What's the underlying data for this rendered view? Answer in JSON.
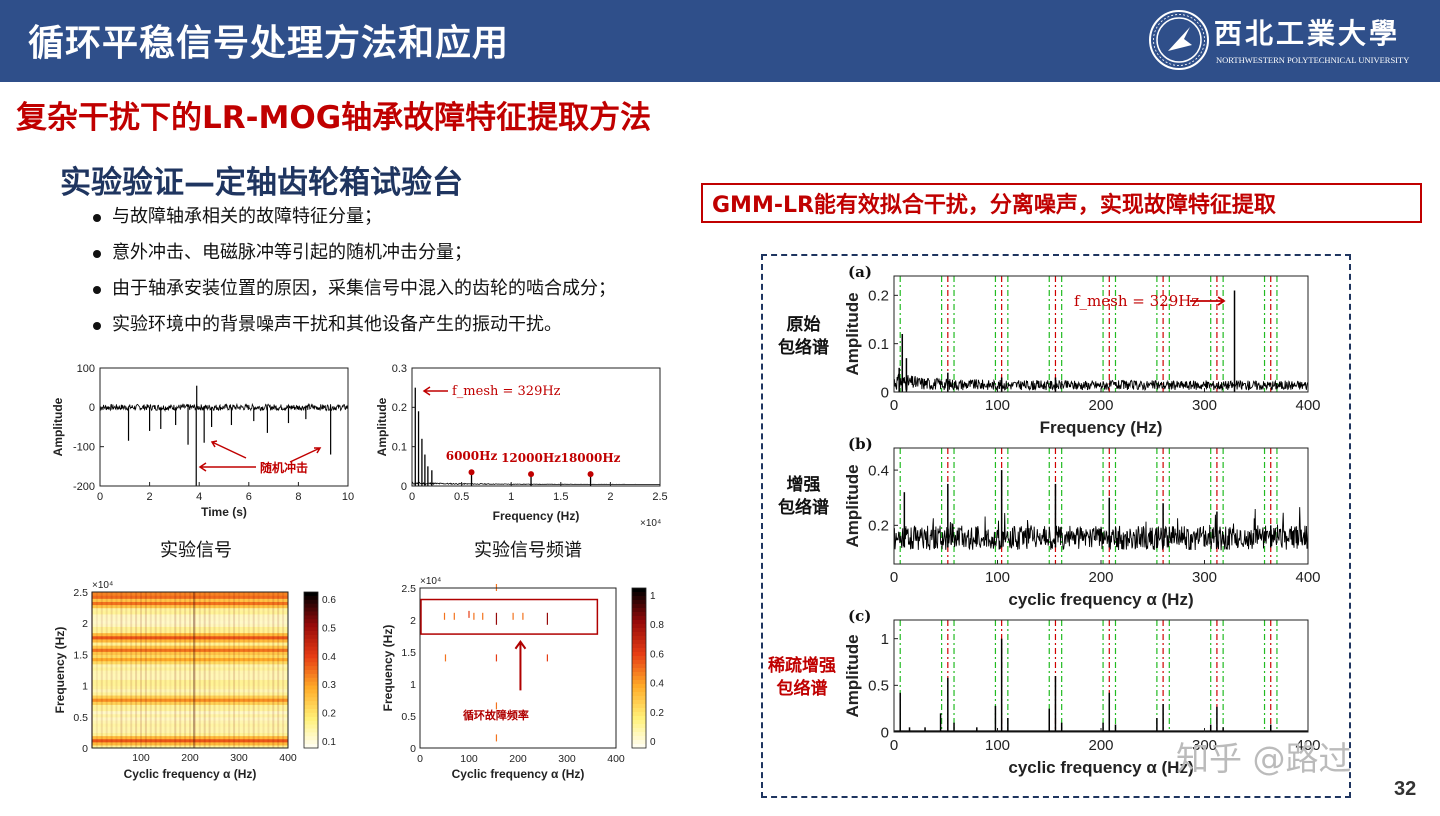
{
  "header": {
    "title": "循环平稳信号处理方法和应用",
    "university_name": "西北工業大學",
    "university_en": "NORTHWESTERN POLYTECHNICAL UNIVERSITY"
  },
  "subtitle": "复杂干扰下的LR-MOG轴承故障特征提取方法",
  "section_title": "实验验证—定轴齿轮箱试验台",
  "bullets": [
    "与故障轴承相关的故障特征分量；",
    "意外冲击、电磁脉冲等引起的随机冲击分量；",
    "由于轴承安装位置的原因，采集信号中混入的齿轮的啮合成分；",
    "实验环境中的背景噪声干扰和其他设备产生的振动干扰。"
  ],
  "callout": "GMM-LR能有效拟合干扰，分离噪声，实现故障特征提取",
  "page_number": "32",
  "watermark": "知乎 @路过",
  "captions": {
    "signal": "实验信号",
    "spectrum": "实验信号频谱"
  },
  "colors": {
    "header_bg": "#2f4f8a",
    "accent_red": "#c00000",
    "navy": "#1f3560",
    "red_guide": "#d00000",
    "green_guide": "#22bb22"
  },
  "chart_data": [
    {
      "id": "time-signal",
      "type": "line",
      "xlabel": "Time (s)",
      "ylabel": "Amplitude",
      "xlim": [
        0,
        10
      ],
      "ylim": [
        -200,
        100
      ],
      "xticks": [
        "0",
        "2",
        "4",
        "6",
        "8",
        "10"
      ],
      "yticks": [
        "100",
        "0",
        "-100",
        "-200"
      ],
      "annotation": "随机冲击",
      "impulses": [
        {
          "x": 1.15,
          "y": -85
        },
        {
          "x": 2.0,
          "y": -60
        },
        {
          "x": 2.45,
          "y": -55
        },
        {
          "x": 3.05,
          "y": -45
        },
        {
          "x": 3.55,
          "y": -95
        },
        {
          "x": 3.88,
          "y": -200
        },
        {
          "x": 3.9,
          "y": 55
        },
        {
          "x": 4.2,
          "y": -90
        },
        {
          "x": 4.5,
          "y": -50
        },
        {
          "x": 5.3,
          "y": -45
        },
        {
          "x": 6.2,
          "y": -35
        },
        {
          "x": 6.75,
          "y": -65
        },
        {
          "x": 7.6,
          "y": -40
        },
        {
          "x": 8.3,
          "y": -30
        },
        {
          "x": 9.3,
          "y": -120
        }
      ]
    },
    {
      "id": "signal-spectrum",
      "type": "line",
      "xlabel": "Frequency (Hz)",
      "ylabel": "Amplitude",
      "x_multiplier": "×10⁴",
      "xlim": [
        0,
        2.5
      ],
      "ylim": [
        0,
        0.3
      ],
      "xticks": [
        "0",
        "0.5",
        "1",
        "1.5",
        "2",
        "2.5"
      ],
      "yticks": [
        "0.3",
        "0.2",
        "0.1",
        "0"
      ],
      "peaks": [
        {
          "x": 0.033,
          "y": 0.25
        },
        {
          "x": 0.066,
          "y": 0.19
        },
        {
          "x": 0.1,
          "y": 0.12
        },
        {
          "x": 0.13,
          "y": 0.08
        },
        {
          "x": 0.16,
          "y": 0.05
        },
        {
          "x": 0.2,
          "y": 0.04
        },
        {
          "x": 0.6,
          "y": 0.03
        },
        {
          "x": 1.2,
          "y": 0.025
        },
        {
          "x": 1.8,
          "y": 0.025
        }
      ],
      "labels": [
        {
          "text": "f_mesh = 329Hz",
          "x": 0.033,
          "y": 0.25
        },
        {
          "text": "6000Hz",
          "x": 0.6,
          "y": 0.03
        },
        {
          "text": "12000Hz",
          "x": 1.2,
          "y": 0.025
        },
        {
          "text": "18000Hz",
          "x": 1.8,
          "y": 0.025
        }
      ]
    },
    {
      "id": "cyclic-heatmap-raw",
      "type": "heatmap",
      "xlabel": "Cyclic frequency α (Hz)",
      "ylabel": "Frequency (Hz)",
      "y_multiplier": "×10⁴",
      "xlim": [
        0,
        400
      ],
      "ylim": [
        0,
        2.5
      ],
      "xticks": [
        "100",
        "200",
        "300",
        "400"
      ],
      "yticks": [
        "2.5",
        "2",
        "1.5",
        "1",
        "0.5",
        "0"
      ],
      "colorbar_ticks": [
        "0.6",
        "0.5",
        "0.4",
        "0.3",
        "0.2",
        "0.1"
      ],
      "bands": [
        {
          "y": 2.42,
          "level": 0.6
        },
        {
          "y": 2.3,
          "level": 0.5
        },
        {
          "y": 1.75,
          "level": 0.55
        },
        {
          "y": 1.55,
          "level": 0.5
        },
        {
          "y": 1.4,
          "level": 0.4
        },
        {
          "y": 0.75,
          "level": 0.45
        },
        {
          "y": 0.1,
          "level": 0.55
        }
      ]
    },
    {
      "id": "cyclic-heatmap-sparse",
      "type": "heatmap",
      "xlabel": "Cyclic frequency α (Hz)",
      "ylabel": "Frequency (Hz)",
      "y_multiplier": "×10⁴",
      "xlim": [
        0,
        400
      ],
      "ylim": [
        0,
        2.5
      ],
      "xticks": [
        "0",
        "100",
        "200",
        "300",
        "400"
      ],
      "yticks": [
        "2.5",
        "2",
        "1.5",
        "1",
        "0.5",
        "0"
      ],
      "colorbar_ticks": [
        "1",
        "0.8",
        "0.6",
        "0.4",
        "0.2",
        "0"
      ],
      "annotation": "循环故障频率",
      "marks": [
        {
          "x": 50,
          "y": 2.05,
          "level": 0.3
        },
        {
          "x": 70,
          "y": 2.05,
          "level": 0.3
        },
        {
          "x": 100,
          "y": 2.08,
          "level": 0.4
        },
        {
          "x": 110,
          "y": 2.05,
          "level": 0.3
        },
        {
          "x": 128,
          "y": 2.05,
          "level": 0.3
        },
        {
          "x": 156,
          "y": 2.05,
          "level": 0.6
        },
        {
          "x": 190,
          "y": 2.05,
          "level": 0.3
        },
        {
          "x": 210,
          "y": 2.05,
          "level": 0.3
        },
        {
          "x": 260,
          "y": 2.05,
          "level": 0.6
        },
        {
          "x": 156,
          "y": 2.5,
          "level": 0.3
        },
        {
          "x": 52,
          "y": 1.4,
          "level": 0.3
        },
        {
          "x": 156,
          "y": 1.4,
          "level": 0.4
        },
        {
          "x": 260,
          "y": 1.4,
          "level": 0.4
        },
        {
          "x": 156,
          "y": 0.65,
          "level": 0.3
        },
        {
          "x": 156,
          "y": 0.15,
          "level": 0.3
        }
      ]
    },
    {
      "id": "envelope-original",
      "type": "line",
      "panel_letter": "(a)",
      "row_label": [
        "原始",
        "包络谱"
      ],
      "xlabel": "Frequency (Hz)",
      "ylabel": "Amplitude",
      "xlim": [
        0,
        400
      ],
      "ylim": [
        0,
        0.24
      ],
      "xticks": [
        "0",
        "100",
        "200",
        "300",
        "400"
      ],
      "yticks": [
        "0.2",
        "0.1",
        "0"
      ],
      "annotation": "f_mesh = 329Hz",
      "peaks": [
        {
          "x": 5,
          "y": 0.05
        },
        {
          "x": 8,
          "y": 0.12
        },
        {
          "x": 12,
          "y": 0.07
        },
        {
          "x": 52,
          "y": 0.04
        },
        {
          "x": 104,
          "y": 0.03
        },
        {
          "x": 156,
          "y": 0.03
        },
        {
          "x": 329,
          "y": 0.21
        }
      ],
      "red_guides": [
        52,
        104,
        156,
        208,
        260,
        312,
        364
      ],
      "green_guides": [
        6,
        46,
        58,
        98,
        110,
        150,
        162,
        202,
        214,
        254,
        266,
        306,
        318,
        358,
        370
      ]
    },
    {
      "id": "envelope-enhanced",
      "type": "line",
      "panel_letter": "(b)",
      "row_label": [
        "增强",
        "包络谱"
      ],
      "xlabel": "cyclic frequency α (Hz)",
      "ylabel": "Amplitude",
      "xlim": [
        0,
        400
      ],
      "ylim": [
        0.06,
        0.48
      ],
      "xticks": [
        "0",
        "100",
        "200",
        "300",
        "400"
      ],
      "yticks": [
        "0.4",
        "0.2"
      ],
      "peaks": [
        {
          "x": 10,
          "y": 0.32
        },
        {
          "x": 52,
          "y": 0.35
        },
        {
          "x": 104,
          "y": 0.4
        },
        {
          "x": 156,
          "y": 0.35
        },
        {
          "x": 208,
          "y": 0.3
        },
        {
          "x": 260,
          "y": 0.28
        },
        {
          "x": 312,
          "y": 0.25
        },
        {
          "x": 364,
          "y": 0.2
        }
      ],
      "red_guides": [
        52,
        104,
        156,
        208,
        260,
        312,
        364
      ],
      "green_guides": [
        6,
        46,
        58,
        98,
        110,
        150,
        162,
        202,
        214,
        254,
        266,
        306,
        318,
        358,
        370
      ]
    },
    {
      "id": "envelope-sparse",
      "type": "line",
      "panel_letter": "(c)",
      "row_label": [
        "稀疏增强",
        "包络谱"
      ],
      "xlabel": "cyclic frequency α (Hz)",
      "ylabel": "Amplitude",
      "xlim": [
        0,
        400
      ],
      "ylim": [
        0,
        1.2
      ],
      "xticks": [
        "0",
        "100",
        "200",
        "300",
        "400"
      ],
      "yticks": [
        "1",
        "0.5",
        "0"
      ],
      "peaks": [
        {
          "x": 6,
          "y": 0.42
        },
        {
          "x": 15,
          "y": 0.05
        },
        {
          "x": 30,
          "y": 0.05
        },
        {
          "x": 45,
          "y": 0.2
        },
        {
          "x": 52,
          "y": 0.58
        },
        {
          "x": 58,
          "y": 0.1
        },
        {
          "x": 80,
          "y": 0.05
        },
        {
          "x": 98,
          "y": 0.28
        },
        {
          "x": 104,
          "y": 1.0
        },
        {
          "x": 110,
          "y": 0.15
        },
        {
          "x": 150,
          "y": 0.25
        },
        {
          "x": 156,
          "y": 0.6
        },
        {
          "x": 162,
          "y": 0.1
        },
        {
          "x": 202,
          "y": 0.1
        },
        {
          "x": 208,
          "y": 0.42
        },
        {
          "x": 214,
          "y": 0.08
        },
        {
          "x": 254,
          "y": 0.15
        },
        {
          "x": 260,
          "y": 0.3
        },
        {
          "x": 306,
          "y": 0.08
        },
        {
          "x": 312,
          "y": 0.27
        },
        {
          "x": 318,
          "y": 0.05
        },
        {
          "x": 364,
          "y": 0.08
        }
      ],
      "red_guides": [
        52,
        104,
        156,
        208,
        260,
        312,
        364
      ],
      "green_guides": [
        6,
        46,
        58,
        98,
        110,
        150,
        162,
        202,
        214,
        254,
        266,
        306,
        318,
        358,
        370
      ]
    }
  ]
}
